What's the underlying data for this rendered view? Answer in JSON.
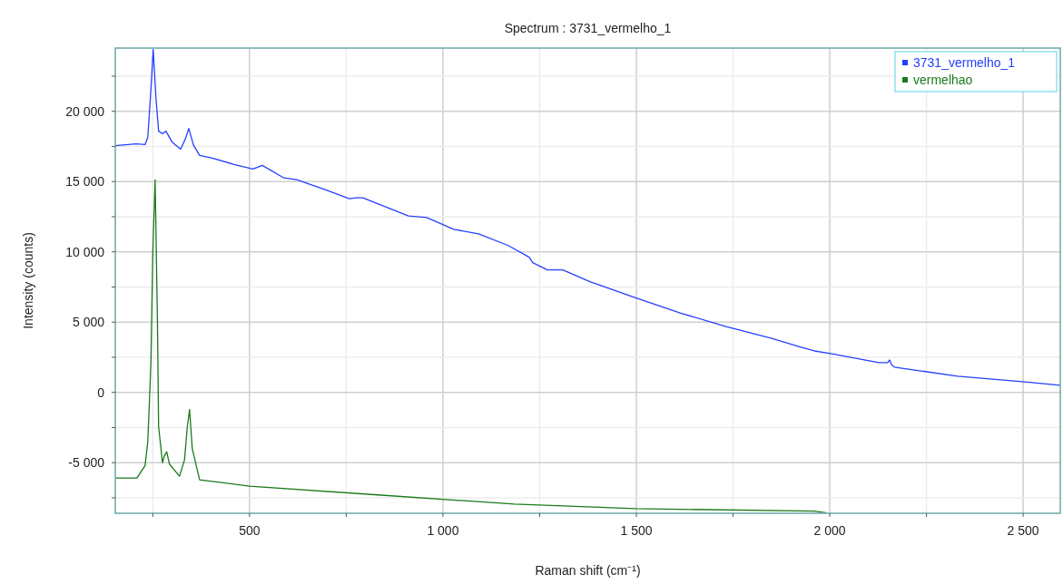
{
  "chart_data": {
    "type": "line",
    "title": "Spectrum : 3731_vermelho_1",
    "xlabel": "Raman shift (cm⁻¹)",
    "ylabel": "Intensity (counts)",
    "xlim": [
      153,
      2596
    ],
    "ylim": [
      -8600,
      24500
    ],
    "xticks": [
      {
        "value": 250,
        "label": null
      },
      500,
      {
        "value": 750,
        "label": null
      },
      {
        "value": 1000,
        "label": "1 000"
      },
      {
        "value": 1250,
        "label": null
      },
      {
        "value": 1500,
        "label": "1 500"
      },
      {
        "value": 1750,
        "label": null
      },
      {
        "value": 2000,
        "label": "2 000"
      },
      {
        "value": 2250,
        "label": null
      },
      {
        "value": 2500,
        "label": "2 500"
      }
    ],
    "yticks": [
      {
        "value": -7500,
        "label": null
      },
      {
        "value": -5000,
        "label": "-5 000"
      },
      {
        "value": -2500,
        "label": null
      },
      0,
      {
        "value": 2500,
        "label": null
      },
      {
        "value": 5000,
        "label": "5 000"
      },
      {
        "value": 7500,
        "label": null
      },
      {
        "value": 10000,
        "label": "10 000"
      },
      {
        "value": 12500,
        "label": null
      },
      {
        "value": 15000,
        "label": "15 000"
      },
      {
        "value": 17500,
        "label": null
      },
      {
        "value": 20000,
        "label": "20 000"
      },
      {
        "value": 22500,
        "label": null
      }
    ],
    "grid": true,
    "legend": "top right",
    "marker": "none",
    "line_style": "solid",
    "series": [
      {
        "name": "3731_vermelho_1",
        "color": "#2440ff",
        "x": [
          153,
          207,
          230,
          237,
          245,
          251,
          258,
          265,
          275,
          284,
          300,
          322,
          335,
          343,
          355,
          371,
          404,
          460,
          509,
          533,
          589,
          622,
          702,
          758,
          775,
          793,
          840,
          911,
          958,
          1028,
          1092,
          1169,
          1223,
          1232,
          1270,
          1310,
          1380,
          1498,
          1615,
          1732,
          1850,
          1920,
          1960,
          2002,
          2127,
          2150,
          2155,
          2160,
          2167,
          2331,
          2498,
          2596
        ],
        "values": [
          17560,
          17690,
          17630,
          18140,
          21500,
          24400,
          21000,
          18590,
          18400,
          18590,
          17800,
          17300,
          18100,
          18780,
          17600,
          16860,
          16670,
          16220,
          15900,
          16150,
          15260,
          15130,
          14360,
          13780,
          13850,
          13850,
          13330,
          12560,
          12440,
          11600,
          11280,
          10450,
          9620,
          9230,
          8720,
          8720,
          7880,
          6730,
          5640,
          4680,
          3850,
          3270,
          2950,
          2760,
          2120,
          2120,
          2310,
          1950,
          1800,
          1150,
          770,
          510
        ]
      },
      {
        "name": "vermelhao",
        "color": "#1a7a1a",
        "x": [
          153,
          209,
          230,
          237,
          245,
          250,
          256,
          262,
          265,
          275,
          280,
          286,
          293,
          319,
          332,
          339,
          345,
          352,
          371,
          500,
          840,
          1185,
          1498,
          1960,
          1990
        ],
        "values": [
          -6090,
          -6090,
          -5200,
          -3530,
          2000,
          10000,
          15130,
          5000,
          -2440,
          -5000,
          -4500,
          -4230,
          -5100,
          -5960,
          -4800,
          -2500,
          -1220,
          -4000,
          -6220,
          -6670,
          -7310,
          -7950,
          -8270,
          -8450,
          -8560
        ]
      }
    ]
  }
}
